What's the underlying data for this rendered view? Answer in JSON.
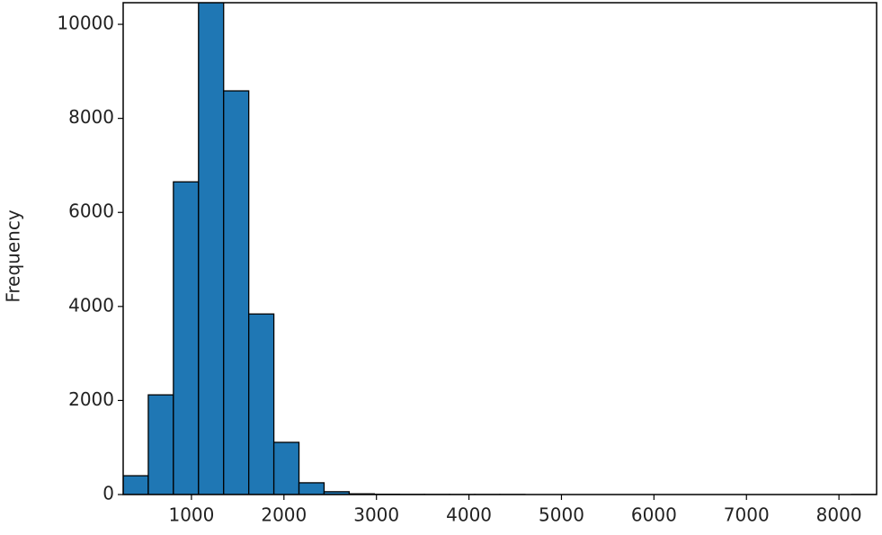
{
  "chart_data": {
    "type": "histogram",
    "y_label": "Frequency",
    "color": "#1f77b4",
    "edgecolor": "#000000",
    "bins": [
      262,
      533.5,
      805,
      1076.5,
      1348,
      1619.5,
      1891,
      2162.5,
      2434,
      2705.5,
      2977,
      3248.5,
      3520,
      3791.5,
      4063,
      4334.5,
      4606,
      4877.5,
      5149,
      5420.5,
      5692,
      5963.5,
      6235,
      6506.5,
      6778,
      7049.5,
      7321,
      7592.5,
      7864,
      8135.5,
      8407
    ],
    "values": [
      400,
      2120,
      6650,
      10600,
      8585,
      3840,
      1110,
      250,
      60,
      15,
      6,
      3,
      2,
      1,
      1,
      1,
      0,
      0,
      0,
      0,
      0,
      0,
      0,
      0,
      0,
      0,
      0,
      0,
      0,
      1
    ],
    "xlim": [
      262,
      8407
    ],
    "ylim": [
      0,
      10460
    ],
    "xticks": [
      1000,
      2000,
      3000,
      4000,
      5000,
      6000,
      7000,
      8000
    ],
    "yticks": [
      0,
      2000,
      4000,
      6000,
      8000,
      10000
    ]
  }
}
